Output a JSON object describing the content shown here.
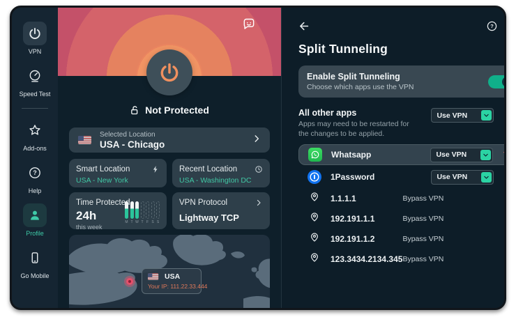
{
  "sidebar": {
    "items": [
      {
        "id": "vpn",
        "label": "VPN",
        "icon": "power",
        "style": "boxed"
      },
      {
        "id": "speed-test",
        "label": "Speed Test",
        "icon": "speedometer",
        "style": "plain"
      },
      {
        "divider": true
      },
      {
        "id": "add-ons",
        "label": "Add-ons",
        "icon": "star",
        "style": "plain"
      },
      {
        "id": "help",
        "label": "Help",
        "icon": "help-circle",
        "style": "plain"
      },
      {
        "id": "profile",
        "label": "Profile",
        "icon": "person",
        "style": "teal"
      },
      {
        "id": "go-mobile",
        "label": "Go Mobile",
        "icon": "mobile",
        "style": "plain"
      }
    ]
  },
  "main": {
    "status": "Not Protected",
    "selected_location": {
      "label": "Selected Location",
      "value": "USA - Chicago"
    },
    "smart_location": {
      "label": "Smart Location",
      "value": "USA - New York"
    },
    "recent_location": {
      "label": "Recent Location",
      "value": "USA - Washington DC"
    },
    "time_protected": {
      "label": "Time Protected",
      "value": "24h",
      "sub": "this week",
      "days": [
        "M",
        "T",
        "W",
        "T",
        "F",
        "S",
        "S"
      ],
      "filled_days": 3
    },
    "vpn_protocol": {
      "label": "VPN Protocol",
      "value": "Lightway TCP"
    },
    "map_tooltip": {
      "country": "USA",
      "ip_label": "Your IP:",
      "ip": "111.22.33.444"
    }
  },
  "panel": {
    "title": "Split Tunneling",
    "enable": {
      "title": "Enable Split Tunneling",
      "subtitle": "Choose which apps use the VPN",
      "enabled": true
    },
    "all_other_apps": {
      "title": "All other apps",
      "subtitle": "Apps may need to be restarted for the changes to be applied.",
      "mode": "Use VPN"
    },
    "apps": [
      {
        "name": "Whatsapp",
        "mode": "Use VPN",
        "control": "dropdown",
        "icon": "whatsapp",
        "highlighted": true,
        "deletable": true
      },
      {
        "name": "1Password",
        "mode": "Use VPN",
        "control": "dropdown",
        "icon": "1password"
      },
      {
        "name": "1.1.1.1",
        "mode": "Bypass VPN",
        "control": "text",
        "icon": "location-pin"
      },
      {
        "name": "192.191.1.1",
        "mode": "Bypass VPN",
        "control": "text",
        "icon": "location-pin"
      },
      {
        "name": "192.191.1.2",
        "mode": "Bypass VPN",
        "control": "text",
        "icon": "location-pin"
      },
      {
        "name": "123.3434.2134.345",
        "mode": "Bypass VPN",
        "control": "text",
        "icon": "location-pin"
      }
    ]
  },
  "colors": {
    "accent_teal": "#2bd3a3",
    "toggle_on": "#10b08a",
    "power_orange": "#f0905f",
    "hero_red": "#c45169",
    "trash_red": "#e36d6d",
    "ip_orange": "#e0795a"
  }
}
